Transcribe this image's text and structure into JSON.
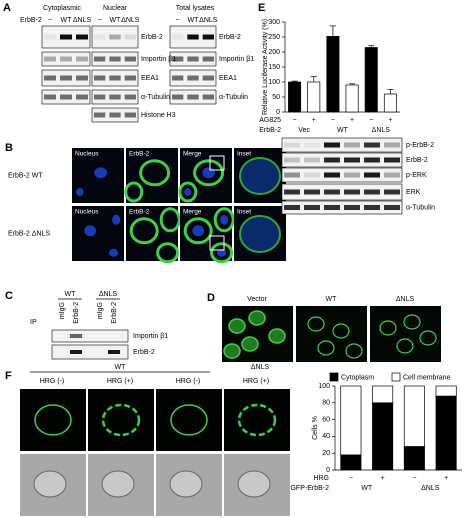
{
  "figure": {
    "A": {
      "letter": "A",
      "columns": [
        "Cytoplasmic",
        "Nuclear",
        "Total lysates"
      ],
      "lane_header": "ErbB-2",
      "lanes": [
        "−",
        "WT",
        "ΔNLS"
      ],
      "middle_labels": [
        "ErbB-2",
        "Importin β1",
        "EEA1",
        "α-Tubulin",
        "Histone H3"
      ],
      "right_labels": [
        "ErbB-2",
        "Importin β1",
        "EEA1",
        "α-Tubulin"
      ]
    },
    "B": {
      "letter": "B",
      "columns": [
        "Nucleus",
        "ErbB-2",
        "Merge",
        "Inset"
      ],
      "rows": [
        "ErbB-2 WT",
        "ErbB-2 ΔNLS"
      ]
    },
    "C": {
      "letter": "C",
      "groups": [
        "WT",
        "ΔNLS"
      ],
      "lanes": [
        "mIgG",
        "ErbB-2"
      ],
      "ip_label": "IP",
      "blots": [
        "Importin β1",
        "ErbB-2"
      ]
    },
    "D": {
      "letter": "D",
      "columns": [
        "Vector",
        "WT",
        "ΔNLS"
      ]
    },
    "E": {
      "letter": "E",
      "blots": [
        "p-ErbB-2",
        "ErbB-2",
        "p-ERK",
        "ERK",
        "α-Tubulin"
      ]
    },
    "F": {
      "letter": "F",
      "groups": [
        "WT",
        "ΔNLS"
      ],
      "conditions": [
        "HRG (-)",
        "HRG (+)"
      ]
    }
  },
  "chart_data": [
    {
      "type": "bar",
      "y_label": "Relative Luciferase Activity (%)",
      "categories": [
        "−",
        "+",
        "−",
        "+",
        "−",
        "+"
      ],
      "values": [
        100,
        100,
        252,
        90,
        215,
        60
      ],
      "errors": [
        3,
        18,
        35,
        4,
        6,
        15
      ],
      "colors": [
        "#000000",
        "#ffffff",
        "#000000",
        "#ffffff",
        "#000000",
        "#ffffff"
      ],
      "groups": [
        "Vec",
        "WT",
        "ΔNLS"
      ],
      "row_labels": [
        "AG825",
        "ErbB-2"
      ],
      "ylim": [
        0,
        300
      ],
      "yticks": [
        0,
        50,
        100,
        150,
        200,
        250,
        300
      ]
    },
    {
      "type": "stacked_bar",
      "y_label": "Cells %",
      "categories": [
        "−",
        "+",
        "−",
        "+"
      ],
      "groups": [
        "WT",
        "ΔNLS"
      ],
      "row_labels": [
        "HRG",
        "GFP-ErbB-2"
      ],
      "series": [
        {
          "name": "Cytoplasm",
          "color": "#000000",
          "values": [
            18,
            80,
            28,
            88
          ]
        },
        {
          "name": "Cell membrane",
          "color": "#ffffff",
          "values": [
            82,
            20,
            72,
            12
          ]
        }
      ],
      "ylim": [
        0,
        100
      ],
      "yticks": [
        0,
        20,
        40,
        60,
        80,
        100
      ]
    }
  ]
}
